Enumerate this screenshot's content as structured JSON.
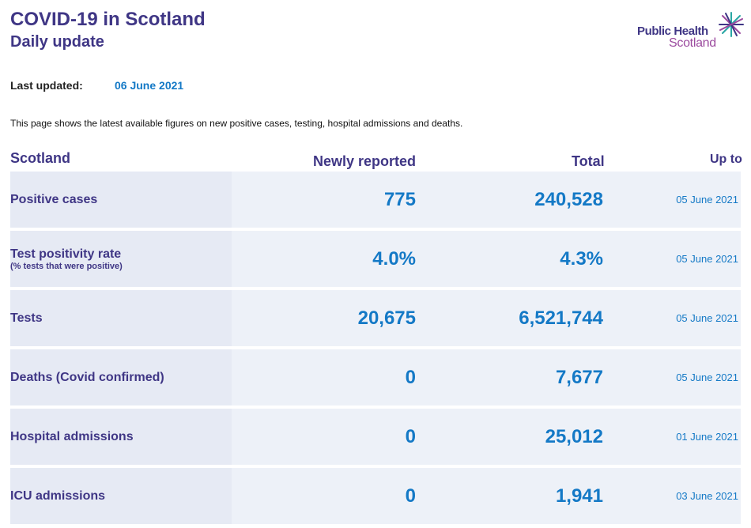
{
  "header": {
    "title": "COVID-19 in Scotland",
    "subtitle": "Daily update"
  },
  "logo": {
    "line1": "Public Health",
    "line2": "Scotland"
  },
  "updated": {
    "label": "Last updated:",
    "value": "06 June 2021"
  },
  "intro": "This page shows the latest available figures on new positive cases, testing, hospital admissions and deaths.",
  "table": {
    "headers": {
      "region": "Scotland",
      "new": "Newly reported",
      "total": "Total",
      "upto": "Up to"
    },
    "rows": [
      {
        "label": "Positive cases",
        "sublabel": "",
        "new": "775",
        "total": "240,528",
        "date": "05 June 2021"
      },
      {
        "label": "Test positivity rate",
        "sublabel": "(% tests that were positive)",
        "new": "4.0%",
        "total": "4.3%",
        "date": "05 June 2021"
      },
      {
        "label": "Tests",
        "sublabel": "",
        "new": "20,675",
        "total": "6,521,744",
        "date": "05 June 2021"
      },
      {
        "label": "Deaths (Covid confirmed)",
        "sublabel": "",
        "new": "0",
        "total": "7,677",
        "date": "05 June 2021"
      },
      {
        "label": "Hospital admissions",
        "sublabel": "",
        "new": "0",
        "total": "25,012",
        "date": "01 June 2021"
      },
      {
        "label": "ICU admissions",
        "sublabel": "",
        "new": "0",
        "total": "1,941",
        "date": "03 June 2021"
      }
    ]
  },
  "colors": {
    "brand_purple": "#3f3685",
    "value_blue": "#1479c6",
    "row_bg": "#edf1f8",
    "logo_magenta": "#9b4a9e",
    "logo_teal": "#2aa7a4"
  }
}
